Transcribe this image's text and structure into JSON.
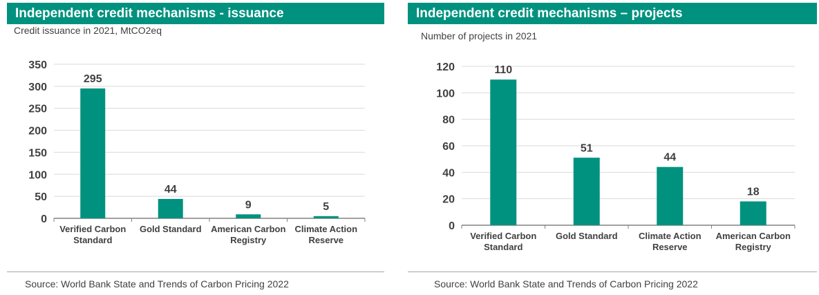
{
  "colors": {
    "accent": "#00927f",
    "bar": "#00927f",
    "grid": "#d9d9d9",
    "text": "#404040"
  },
  "chart_data": [
    {
      "type": "bar",
      "title": "Independent credit mechanisms - issuance",
      "subtitle": "Credit issuance in 2021, MtCO2eq",
      "categories": [
        "Verified Carbon Standard",
        "Gold Standard",
        "American Carbon Registry",
        "Climate Action Reserve"
      ],
      "values": [
        295,
        44,
        9,
        5
      ],
      "ylim": [
        0,
        350
      ],
      "yticks": [
        0,
        50,
        100,
        150,
        200,
        250,
        300,
        350
      ],
      "grid": true,
      "source": "Source: World Bank State and Trends of Carbon Pricing 2022"
    },
    {
      "type": "bar",
      "title": "Independent credit mechanisms – projects",
      "subtitle": "Number of projects in 2021",
      "categories": [
        "Verified Carbon Standard",
        "Gold Standard",
        "Climate Action Reserve",
        "American Carbon Registry"
      ],
      "values": [
        110,
        51,
        44,
        18
      ],
      "ylim": [
        0,
        120
      ],
      "yticks": [
        0,
        20,
        40,
        60,
        80,
        100,
        120
      ],
      "grid": true,
      "source": "Source: World Bank State and Trends of Carbon Pricing 2022"
    }
  ]
}
